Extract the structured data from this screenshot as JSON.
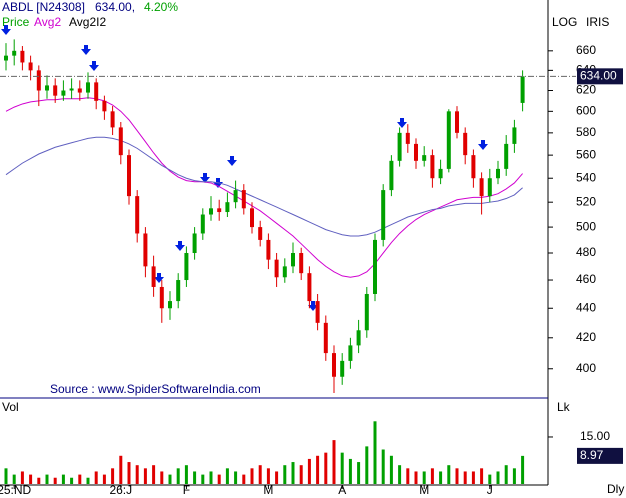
{
  "header": {
    "symbol": "ABDL [N24308]",
    "price": "634.00,",
    "change": "4.20%",
    "last": "634.00",
    "log": "LOG",
    "iris": "IRIS",
    "vol_label": "Vol",
    "lk": "Lk",
    "period": "Dly",
    "source": "Source : www.SpiderSoftwareIndia.com"
  },
  "chart_data": {
    "type": "candlestick",
    "log_scale": true,
    "categories": [
      null,
      "25:ND",
      null,
      null,
      null,
      null,
      null,
      null,
      null,
      null,
      null,
      null,
      null,
      null,
      "26:J",
      null,
      null,
      null,
      null,
      null,
      null,
      null,
      "F",
      null,
      null,
      null,
      null,
      null,
      null,
      null,
      null,
      null,
      "M",
      null,
      null,
      null,
      null,
      null,
      null,
      null,
      null,
      "A",
      null,
      null,
      null,
      null,
      null,
      null,
      null,
      null,
      null,
      "M",
      null,
      null,
      null,
      null,
      null,
      null,
      null,
      "J",
      null,
      null,
      null,
      null
    ],
    "ylim": [
      382,
      715
    ],
    "yticks": [
      400,
      420,
      440,
      460,
      480,
      500,
      520,
      540,
      560,
      580,
      600,
      620,
      640,
      660
    ],
    "series": [
      {
        "name": "Price",
        "up_color": "#00a000",
        "down_color": "#e00000",
        "open": [
          650,
          655,
          660,
          648,
          640,
          620,
          625,
          615,
          620,
          622,
          618,
          628,
          610,
          600,
          585,
          560,
          525,
          495,
          470,
          455,
          440,
          445,
          460,
          480,
          495,
          510,
          515,
          512,
          520,
          530,
          515,
          500,
          490,
          475,
          462,
          470,
          480,
          465,
          445,
          430,
          410,
          395,
          405,
          415,
          425,
          450,
          490,
          530,
          555,
          580,
          570,
          555,
          560,
          540,
          548,
          600,
          580,
          560,
          540,
          525,
          540,
          548,
          570,
          608
        ],
        "high": [
          668,
          672,
          665,
          655,
          645,
          635,
          632,
          630,
          632,
          630,
          638,
          632,
          615,
          605,
          590,
          565,
          530,
          500,
          478,
          460,
          452,
          465,
          485,
          500,
          515,
          525,
          522,
          528,
          538,
          535,
          520,
          505,
          495,
          480,
          476,
          488,
          484,
          470,
          450,
          435,
          415,
          410,
          420,
          432,
          455,
          495,
          535,
          560,
          585,
          588,
          575,
          568,
          565,
          556,
          602,
          605,
          585,
          565,
          545,
          548,
          555,
          578,
          592,
          640
        ],
        "low": [
          640,
          645,
          640,
          630,
          605,
          612,
          608,
          610,
          612,
          610,
          612,
          602,
          592,
          578,
          552,
          518,
          488,
          462,
          448,
          430,
          432,
          440,
          455,
          475,
          490,
          505,
          505,
          508,
          515,
          510,
          495,
          485,
          468,
          455,
          458,
          465,
          460,
          440,
          425,
          405,
          385,
          390,
          400,
          410,
          420,
          445,
          485,
          525,
          550,
          562,
          548,
          550,
          532,
          535,
          545,
          575,
          552,
          532,
          510,
          520,
          535,
          542,
          562,
          600
        ],
        "close": [
          655,
          660,
          648,
          640,
          620,
          625,
          615,
          620,
          622,
          618,
          628,
          610,
          600,
          585,
          560,
          525,
          495,
          470,
          455,
          440,
          445,
          460,
          480,
          495,
          510,
          515,
          512,
          520,
          530,
          515,
          500,
          490,
          475,
          462,
          470,
          480,
          465,
          445,
          430,
          410,
          395,
          405,
          415,
          425,
          450,
          490,
          530,
          555,
          580,
          570,
          555,
          560,
          540,
          548,
          600,
          580,
          560,
          540,
          525,
          540,
          548,
          570,
          585,
          634
        ]
      },
      {
        "name": "Avg2",
        "color": "#d000d0",
        "values": [
          600,
          604,
          607,
          609,
          610,
          611,
          611,
          612,
          612,
          612,
          613,
          612,
          610,
          606,
          600,
          592,
          582,
          572,
          562,
          553,
          546,
          541,
          538,
          537,
          537,
          536,
          533,
          529,
          525,
          521,
          517,
          513,
          508,
          503,
          498,
          493,
          487,
          481,
          475,
          470,
          466,
          463,
          462,
          463,
          466,
          472,
          480,
          488,
          495,
          501,
          506,
          510,
          513,
          516,
          519,
          522,
          523,
          524,
          524,
          525,
          527,
          531,
          536,
          544
        ]
      },
      {
        "name": "Avg2I2",
        "color": "#6060c0",
        "values": [
          543,
          548,
          553,
          557,
          561,
          564,
          567,
          569,
          571,
          573,
          575,
          576,
          576,
          575,
          573,
          570,
          566,
          561,
          556,
          551,
          547,
          543,
          540,
          538,
          537,
          537,
          536,
          534,
          531,
          528,
          525,
          522,
          519,
          516,
          513,
          510,
          507,
          504,
          501,
          498,
          496,
          494,
          493,
          493,
          494,
          496,
          499,
          502,
          505,
          508,
          510,
          512,
          514,
          515,
          517,
          518,
          519,
          519,
          519,
          520,
          521,
          523,
          526,
          532
        ]
      }
    ],
    "volume": {
      "ylim": [
        0,
        25.2
      ],
      "yticks": [
        {
          "value": 15,
          "label": "15.00"
        }
      ],
      "values": [
        5,
        3,
        4,
        3,
        2,
        3,
        2,
        3,
        2,
        3,
        2,
        4,
        3,
        5,
        9,
        7,
        6,
        5,
        6,
        4,
        3,
        5,
        6,
        4,
        3,
        4,
        3,
        5,
        4,
        3,
        5,
        6,
        5,
        4,
        6,
        7,
        6,
        8,
        9,
        10,
        14,
        10,
        8,
        7,
        12,
        20,
        11,
        9,
        6,
        5,
        4,
        4,
        5,
        4,
        6,
        5,
        4,
        4,
        5,
        3,
        4,
        6,
        5,
        8.97
      ]
    }
  }
}
